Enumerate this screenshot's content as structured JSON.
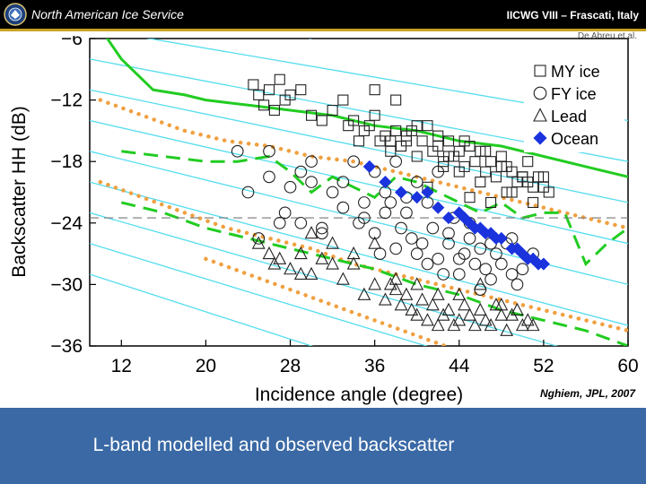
{
  "header": {
    "logo_icon": "nais-emblem-icon",
    "org_name": "North American Ice Service",
    "conference": "IICWG VIII – Frascati, Italy",
    "author": "De Abreu et al."
  },
  "colors": {
    "header_bg": "#000000",
    "gold_rule": "#c9a227",
    "caption_band": "#3a69a5",
    "model_green": "#22cc22",
    "model_orange": "#f0a040",
    "model_cyan": "#55ddee",
    "ocean_blue": "#1a33dd"
  },
  "chart_data": {
    "type": "scatter",
    "title": "",
    "xlabel": "Incidence angle (degree)",
    "ylabel": "Backscatter HH (dB)",
    "xlim": [
      9,
      60
    ],
    "ylim": [
      -36,
      -6
    ],
    "xticks": [
      12,
      20,
      28,
      36,
      44,
      52,
      60
    ],
    "yticks": [
      -6,
      -12,
      -18,
      -24,
      -30,
      -36
    ],
    "legend_position": "top-right",
    "legend": [
      {
        "name": "MY ice",
        "marker": "square"
      },
      {
        "name": "FY ice",
        "marker": "circle"
      },
      {
        "name": "Lead",
        "marker": "triangle"
      },
      {
        "name": "Ocean",
        "marker": "diamond"
      }
    ],
    "reference_line": {
      "y": -23.5,
      "style": "dashed"
    },
    "series": [
      {
        "name": "MY ice",
        "marker": "square",
        "x": [
          24.5,
          25,
          25.5,
          26,
          26.5,
          27,
          27.5,
          28,
          29,
          30,
          31,
          32,
          33,
          33.5,
          34,
          34.5,
          35,
          35.5,
          36,
          36.5,
          37,
          37.5,
          38,
          38.5,
          39,
          39.5,
          40,
          40.5,
          41,
          41.5,
          42,
          42.5,
          43,
          43.5,
          44,
          44.5,
          45,
          45.5,
          46,
          46.5,
          47,
          47.5,
          48,
          48.5,
          49,
          49.5,
          50,
          50.5,
          51,
          51.5,
          52,
          52.5,
          38,
          40,
          42,
          44,
          46,
          48,
          50,
          45,
          47,
          49,
          51,
          36,
          39,
          43,
          41,
          44.5,
          46.5,
          48.5,
          50.5,
          52,
          37.5,
          42.5
        ],
        "y": [
          -10.5,
          -11.5,
          -12.5,
          -11,
          -13,
          -10,
          -12,
          -11.5,
          -11,
          -13.5,
          -14,
          -13,
          -12,
          -14.5,
          -14,
          -16,
          -15,
          -14.5,
          -13.5,
          -16,
          -15.5,
          -17,
          -15,
          -16.5,
          -16,
          -15,
          -17.5,
          -16,
          -14.5,
          -17,
          -16.5,
          -18,
          -16,
          -17.5,
          -17,
          -18.5,
          -16.5,
          -18,
          -17,
          -19,
          -18,
          -19.5,
          -17.5,
          -18.5,
          -19,
          -20,
          -19.5,
          -18,
          -20.5,
          -19.5,
          -20.5,
          -21,
          -12,
          -14.5,
          -15.5,
          -19,
          -20,
          -18.5,
          -19.5,
          -21.5,
          -22,
          -21,
          -22,
          -11,
          -15.5,
          -17.5,
          -20.5,
          -16,
          -17,
          -21,
          -20,
          -19.5,
          -16,
          -18.5
        ]
      },
      {
        "name": "FY ice",
        "marker": "circle",
        "x": [
          23,
          24,
          25,
          26,
          27,
          28,
          29,
          30,
          31,
          32,
          33,
          34,
          34.5,
          35,
          36,
          36.5,
          37,
          37.5,
          38,
          38.5,
          39,
          39.5,
          40,
          40.5,
          41,
          41.5,
          42,
          42.5,
          43,
          43.5,
          44,
          44.5,
          45,
          45.5,
          46,
          46.5,
          47,
          47.5,
          48,
          48.5,
          49,
          49.5,
          50,
          51,
          27.5,
          29,
          31,
          33,
          35,
          37,
          39,
          41,
          43,
          45,
          47,
          49,
          38,
          40,
          42,
          44,
          46,
          36,
          26,
          30
        ],
        "y": [
          -17,
          -21,
          -25.5,
          -19.5,
          -24,
          -20.5,
          -19,
          -20,
          -24.5,
          -21,
          -20,
          -18,
          -24,
          -22,
          -25,
          -27,
          -23,
          -22,
          -26.5,
          -24.5,
          -23,
          -25.5,
          -27,
          -26,
          -28,
          -24.5,
          -27.5,
          -29,
          -26,
          -23.5,
          -29,
          -27,
          -25.5,
          -28,
          -26.5,
          -28.5,
          -29.5,
          -27,
          -28,
          -26,
          -29,
          -30,
          -28.5,
          -27,
          -23,
          -24,
          -25,
          -22.5,
          -23.5,
          -21,
          -21.5,
          -22,
          -25,
          -24,
          -26,
          -25.5,
          -18,
          -20,
          -19,
          -27.5,
          -30.5,
          -19,
          -17,
          -18
        ]
      },
      {
        "name": "Lead",
        "marker": "triangle",
        "x": [
          25,
          26,
          27,
          28,
          29,
          30,
          31,
          32,
          33,
          34,
          35,
          36,
          37,
          37.5,
          38,
          38.5,
          39,
          39.5,
          40,
          40.5,
          41,
          41.5,
          42,
          42.5,
          43,
          43.5,
          44,
          44.5,
          45,
          45.5,
          46,
          46.5,
          47,
          47.5,
          48,
          48.5,
          49,
          49.5,
          50,
          50.5,
          51,
          30,
          32,
          34,
          36,
          38,
          40,
          42,
          44,
          46,
          48,
          26.5,
          29
        ],
        "y": [
          -26,
          -27,
          -27.5,
          -28.5,
          -29,
          -29,
          -27.5,
          -28,
          -29.5,
          -27,
          -31,
          -30,
          -31.5,
          -30,
          -30.5,
          -32,
          -31,
          -32.5,
          -33,
          -31.5,
          -33.5,
          -32,
          -34,
          -33,
          -32.5,
          -34,
          -33.5,
          -32,
          -33,
          -34,
          -32.5,
          -33.5,
          -34,
          -32,
          -33,
          -34.5,
          -33,
          -32.5,
          -34,
          -33.5,
          -34,
          -25,
          -26,
          -28,
          -26,
          -29.5,
          -30,
          -31,
          -31,
          -30,
          -32,
          -28,
          -27
        ]
      },
      {
        "name": "Ocean",
        "marker": "diamond",
        "x": [
          35.5,
          37,
          38.5,
          40,
          41,
          42,
          43,
          44,
          45,
          46,
          47,
          48,
          49,
          50,
          51,
          52,
          44.5,
          45.5,
          46.5,
          47.5,
          49.5,
          50.5,
          51.5
        ],
        "y": [
          -18.5,
          -20,
          -21,
          -21.5,
          -21,
          -22.5,
          -23.5,
          -23,
          -24,
          -24.5,
          -25,
          -25.5,
          -26.5,
          -27,
          -27.5,
          -28,
          -23.5,
          -24.5,
          -25,
          -25.5,
          -26.5,
          -27.5,
          -28
        ]
      }
    ],
    "model_curves": [
      {
        "name": "green solid",
        "color": "#22cc22",
        "style": "solid",
        "x": [
          10,
          12,
          15,
          18,
          20,
          24,
          28,
          32,
          36,
          40,
          44,
          48,
          52,
          56,
          60
        ],
        "y": [
          -5,
          -8,
          -11,
          -11.5,
          -12,
          -12.5,
          -13,
          -13.5,
          -14.5,
          -15,
          -16,
          -16.5,
          -17.5,
          -18.5,
          -19.5
        ]
      },
      {
        "name": "green long-dash 1",
        "color": "#22cc22",
        "style": "long-dash",
        "x": [
          12,
          16,
          20,
          23,
          26,
          28,
          30,
          32,
          34,
          36,
          38,
          40,
          42,
          44,
          46,
          48,
          50,
          52,
          54,
          56,
          58,
          60
        ],
        "y": [
          -17,
          -17.5,
          -18,
          -18,
          -17.5,
          -19,
          -21,
          -19.5,
          -20.5,
          -21.5,
          -19.5,
          -20,
          -21,
          -22,
          -23,
          -22,
          -23.5,
          -23,
          -23,
          -28,
          -26,
          -24.5
        ]
      },
      {
        "name": "green long-dash 2",
        "color": "#22cc22",
        "style": "long-dash",
        "x": [
          12,
          16,
          20,
          24,
          28,
          32,
          36,
          40,
          44,
          48,
          52,
          56,
          60
        ],
        "y": [
          -22,
          -23,
          -24.5,
          -25.5,
          -26.5,
          -27.5,
          -28.5,
          -30,
          -31,
          -32.5,
          -33.5,
          -34.5,
          -36
        ]
      },
      {
        "name": "orange dotted 1",
        "color": "#f0a040",
        "style": "dotted",
        "x": [
          10,
          14,
          18,
          22,
          26,
          30,
          34,
          38,
          42,
          46,
          50,
          54,
          58,
          60
        ],
        "y": [
          -12,
          -13.5,
          -15,
          -16,
          -16.5,
          -17.5,
          -18,
          -19,
          -20,
          -21,
          -22,
          -23,
          -24,
          -24.5
        ]
      },
      {
        "name": "orange dotted 2",
        "color": "#f0a040",
        "style": "dotted",
        "x": [
          10,
          14,
          18,
          22,
          26,
          30,
          34,
          38,
          42,
          46,
          50,
          54,
          58,
          60
        ],
        "y": [
          -20,
          -21.5,
          -23,
          -24.5,
          -25.5,
          -26.5,
          -28,
          -29,
          -30,
          -31,
          -32,
          -33,
          -34,
          -34.5
        ]
      },
      {
        "name": "orange dotted 3",
        "color": "#f0a040",
        "style": "dotted",
        "x": [
          20,
          24,
          28,
          32,
          36,
          40,
          44,
          48,
          52,
          56,
          60
        ],
        "y": [
          -27.5,
          -29,
          -30.5,
          -32,
          -33.5,
          -35,
          -36.5,
          -38,
          -39.5,
          -41,
          -42.5
        ]
      },
      {
        "name": "cyan 1",
        "color": "#55ddee",
        "style": "solid",
        "x": [
          9,
          30
        ],
        "y": [
          -2,
          -6
        ]
      },
      {
        "name": "cyan 2",
        "color": "#55ddee",
        "style": "solid",
        "x": [
          9,
          60
        ],
        "y": [
          -5,
          -14
        ]
      },
      {
        "name": "cyan 3",
        "color": "#55ddee",
        "style": "solid",
        "x": [
          9,
          60
        ],
        "y": [
          -8,
          -18
        ]
      },
      {
        "name": "cyan 4",
        "color": "#55ddee",
        "style": "solid",
        "x": [
          9,
          60
        ],
        "y": [
          -11,
          -22
        ]
      },
      {
        "name": "cyan 5",
        "color": "#55ddee",
        "style": "solid",
        "x": [
          9,
          60
        ],
        "y": [
          -14,
          -26
        ]
      },
      {
        "name": "cyan 6",
        "color": "#55ddee",
        "style": "solid",
        "x": [
          9,
          60
        ],
        "y": [
          -17,
          -30
        ]
      },
      {
        "name": "cyan 7",
        "color": "#55ddee",
        "style": "solid",
        "x": [
          9,
          60
        ],
        "y": [
          -20,
          -34
        ]
      },
      {
        "name": "cyan 8",
        "color": "#55ddee",
        "style": "solid",
        "x": [
          9,
          60
        ],
        "y": [
          -23,
          -38
        ]
      },
      {
        "name": "cyan 9",
        "color": "#55ddee",
        "style": "solid",
        "x": [
          9,
          60
        ],
        "y": [
          -26,
          -42
        ]
      },
      {
        "name": "cyan 10",
        "color": "#55ddee",
        "style": "solid",
        "x": [
          9,
          60
        ],
        "y": [
          -29,
          -46
        ]
      }
    ]
  },
  "credit": "Nghiem, JPL, 2007",
  "caption": "L-band modelled and observed backscatter"
}
